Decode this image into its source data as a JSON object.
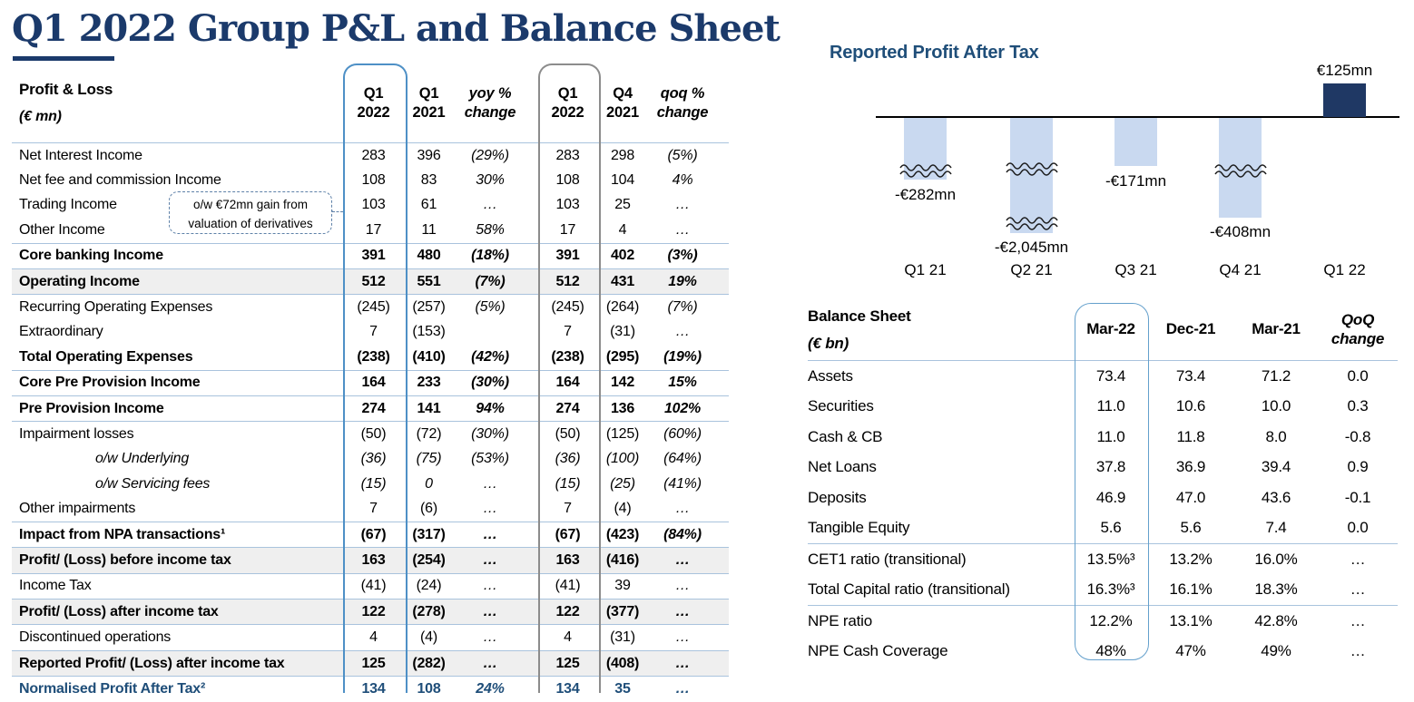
{
  "page_title": "Q1 2022 Group P&L and Balance Sheet",
  "pnl_table": {
    "title": "Profit & Loss",
    "unit": "(€ mn)",
    "columns": [
      {
        "line1": "Q1",
        "line2": "2022",
        "italic": false
      },
      {
        "line1": "Q1",
        "line2": "2021",
        "italic": false
      },
      {
        "line1": "yoy %",
        "line2": "change",
        "italic": true
      },
      {
        "line1": "Q1",
        "line2": "2022",
        "italic": false
      },
      {
        "line1": "Q4",
        "line2": "2021",
        "italic": false
      },
      {
        "line1": "qoq %",
        "line2": "change",
        "italic": true
      }
    ],
    "rows": [
      {
        "label": "Net Interest Income",
        "values": [
          "283",
          "396",
          "(29%)",
          "283",
          "298",
          "(5%)"
        ]
      },
      {
        "label": "Net fee and commission Income",
        "values": [
          "108",
          "83",
          "30%",
          "108",
          "104",
          "4%"
        ]
      },
      {
        "label": "Trading Income",
        "values": [
          "103",
          "61",
          "…",
          "103",
          "25",
          "…"
        ]
      },
      {
        "label": "Other Income",
        "values": [
          "17",
          "11",
          "58%",
          "17",
          "4",
          "…"
        ],
        "line_below": true
      },
      {
        "label": "Core banking Income",
        "bold": true,
        "values": [
          "391",
          "480",
          "(18%)",
          "391",
          "402",
          "(3%)"
        ],
        "line_below": true
      },
      {
        "label": "Operating Income",
        "bold": true,
        "shaded": true,
        "values": [
          "512",
          "551",
          "(7%)",
          "512",
          "431",
          "19%"
        ],
        "line_below": true
      },
      {
        "label": "Recurring Operating Expenses",
        "values": [
          "(245)",
          "(257)",
          "(5%)",
          "(245)",
          "(264)",
          "(7%)"
        ]
      },
      {
        "label": "Extraordinary",
        "values": [
          "7",
          "(153)",
          "",
          "7",
          "(31)",
          "…"
        ]
      },
      {
        "label": "Total Operating Expenses",
        "bold": true,
        "values": [
          "(238)",
          "(410)",
          "(42%)",
          "(238)",
          "(295)",
          "(19%)"
        ],
        "line_below": true
      },
      {
        "label": "Core Pre Provision Income",
        "bold": true,
        "values": [
          "164",
          "233",
          "(30%)",
          "164",
          "142",
          "15%"
        ],
        "line_below": true
      },
      {
        "label": "Pre Provision Income",
        "bold": true,
        "values": [
          "274",
          "141",
          "94%",
          "274",
          "136",
          "102%"
        ],
        "line_below": true
      },
      {
        "label": "Impairment losses",
        "values": [
          "(50)",
          "(72)",
          "(30%)",
          "(50)",
          "(125)",
          "(60%)"
        ]
      },
      {
        "label": "o/w Underlying",
        "indent": true,
        "values": [
          "(36)",
          "(75)",
          "(53%)",
          "(36)",
          "(100)",
          "(64%)"
        ]
      },
      {
        "label": "o/w Servicing fees",
        "indent": true,
        "values": [
          "(15)",
          "0",
          "…",
          "(15)",
          "(25)",
          "(41%)"
        ]
      },
      {
        "label": "Other impairments",
        "values": [
          "7",
          "(6)",
          "…",
          "7",
          "(4)",
          "…"
        ],
        "line_below": true
      },
      {
        "label": "Impact from NPA transactions¹",
        "bold": true,
        "values": [
          "(67)",
          "(317)",
          "…",
          "(67)",
          "(423)",
          "(84%)"
        ],
        "line_below": true
      },
      {
        "label": "Profit/ (Loss) before income tax",
        "bold": true,
        "shaded": true,
        "values": [
          "163",
          "(254)",
          "…",
          "163",
          "(416)",
          "…"
        ],
        "line_below": true
      },
      {
        "label": "Income Tax",
        "values": [
          "(41)",
          "(24)",
          "…",
          "(41)",
          "39",
          "…"
        ],
        "line_below": true
      },
      {
        "label": "Profit/ (Loss) after income tax",
        "bold": true,
        "shaded": true,
        "values": [
          "122",
          "(278)",
          "…",
          "122",
          "(377)",
          "…"
        ],
        "line_below": true
      },
      {
        "label": "Discontinued operations",
        "values": [
          "4",
          "(4)",
          "…",
          "4",
          "(31)",
          "…"
        ],
        "line_below": true
      },
      {
        "label": "Reported Profit/ (Loss) after income tax",
        "bold": true,
        "shaded": true,
        "values": [
          "125",
          "(282)",
          "…",
          "125",
          "(408)",
          "…"
        ],
        "line_below": true
      },
      {
        "label": "Normalised Profit After Tax²",
        "bold": true,
        "navy": true,
        "values": [
          "134",
          "108",
          "24%",
          "134",
          "35",
          "…"
        ]
      }
    ],
    "callout": {
      "line1": "o/w €72mn gain from",
      "line2": "valuation of derivatives"
    }
  },
  "chart_data": {
    "type": "bar",
    "title": "Reported Profit After Tax",
    "categories": [
      "Q1 21",
      "Q2 21",
      "Q3 21",
      "Q4 21",
      "Q1 22"
    ],
    "values": [
      -282,
      -2045,
      -171,
      -408,
      125
    ],
    "data_labels": [
      "-€282mn",
      "-€2,045mn",
      "-€171mn",
      "-€408mn",
      "€125mn"
    ],
    "unit": "€ mn",
    "axis_break_marks_per_bar": [
      1,
      2,
      0,
      1,
      0
    ],
    "positive_color": "#1F3864",
    "negative_color": "#C9D9F0",
    "baseline": 0,
    "grid": "off",
    "legend": "none",
    "note": "negative bars truncated with wavy break marks"
  },
  "balance_table": {
    "title": "Balance Sheet",
    "unit": "(€ bn)",
    "columns": [
      {
        "line1": "Mar-22",
        "line2": "",
        "italic": false
      },
      {
        "line1": "Dec-21",
        "line2": "",
        "italic": false
      },
      {
        "line1": "Mar-21",
        "line2": "",
        "italic": false
      },
      {
        "line1": "QoQ",
        "line2": "change",
        "italic": true
      }
    ],
    "rows": [
      {
        "label": "Assets",
        "values": [
          "73.4",
          "73.4",
          "71.2",
          "0.0"
        ]
      },
      {
        "label": "Securities",
        "values": [
          "11.0",
          "10.6",
          "10.0",
          "0.3"
        ]
      },
      {
        "label": "Cash & CB",
        "values": [
          "11.0",
          "11.8",
          "8.0",
          "-0.8"
        ]
      },
      {
        "label": "Net Loans",
        "values": [
          "37.8",
          "36.9",
          "39.4",
          "0.9"
        ]
      },
      {
        "label": "Deposits",
        "values": [
          "46.9",
          "47.0",
          "43.6",
          "-0.1"
        ]
      },
      {
        "label": "Tangible Equity",
        "values": [
          "5.6",
          "5.6",
          "7.4",
          "0.0"
        ],
        "line_below": true
      },
      {
        "label": "CET1 ratio (transitional)",
        "values": [
          "13.5%³",
          "13.2%",
          "16.0%",
          "…"
        ]
      },
      {
        "label": "Total Capital ratio (transitional)",
        "values": [
          "16.3%³",
          "16.1%",
          "18.3%",
          "…"
        ],
        "line_below": true
      },
      {
        "label": "NPE ratio",
        "values": [
          "12.2%",
          "13.1%",
          "42.8%",
          "…"
        ]
      },
      {
        "label": "NPE Cash Coverage",
        "values": [
          "48%",
          "47%",
          "49%",
          "…"
        ]
      }
    ]
  }
}
